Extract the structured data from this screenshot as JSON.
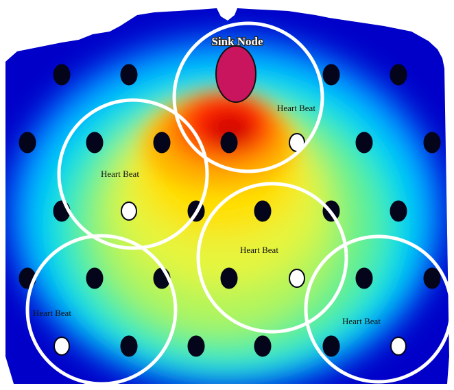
{
  "sink": {
    "label": "Sink Node",
    "fill": "#c8155e"
  },
  "heartbeat_label": "Heart Beat",
  "colors": {
    "node_dark": "#04041a",
    "node_heartbeat": "#ffffff",
    "ring": "#ffffff",
    "heatmap_stops": [
      "#0000c8",
      "#00b4ff",
      "#00e6d2",
      "#64f08c",
      "#d2f548",
      "#ffe000",
      "#ff9600",
      "#ff2800",
      "#c80000"
    ]
  },
  "grid": {
    "rows": 5,
    "columns": 7
  },
  "heartbeat_nodes": [
    {
      "row": 2,
      "col": 5
    },
    {
      "row": 3,
      "col": 2
    },
    {
      "row": 4,
      "col": 5
    },
    {
      "row": 5,
      "col": 1
    },
    {
      "row": 5,
      "col": 6
    }
  ],
  "clusters": [
    {
      "id": "sink"
    },
    {
      "id": "left-upper"
    },
    {
      "id": "center"
    },
    {
      "id": "left-lower"
    },
    {
      "id": "right-lower"
    }
  ]
}
